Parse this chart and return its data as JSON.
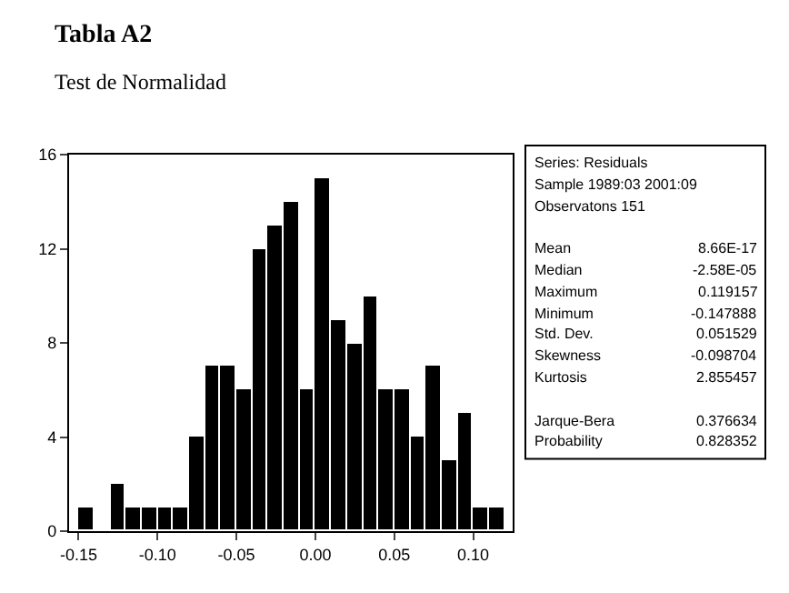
{
  "chart_data": {
    "type": "histogram",
    "title": "Tabla A2",
    "subtitle": "Test de Normalidad",
    "bins": [
      -0.15,
      -0.14,
      -0.13,
      -0.12,
      -0.11,
      -0.1,
      -0.09,
      -0.08,
      -0.07,
      -0.06,
      -0.05,
      -0.04,
      -0.03,
      -0.02,
      -0.01,
      0.0,
      0.01,
      0.02,
      0.03,
      0.04,
      0.05,
      0.06,
      0.07,
      0.08,
      0.09,
      0.1,
      0.11,
      0.12
    ],
    "values": [
      1,
      0,
      2,
      1,
      1,
      1,
      1,
      4,
      7,
      7,
      6,
      12,
      13,
      14,
      6,
      15,
      9,
      8,
      10,
      6,
      6,
      4,
      7,
      3,
      5,
      1,
      1
    ],
    "color": "#000000",
    "xlim": [
      -0.156,
      0.125
    ],
    "xticks": [
      {
        "value": -0.15,
        "label": "-0.15"
      },
      {
        "value": -0.1,
        "label": "-0.10"
      },
      {
        "value": -0.05,
        "label": "-0.05"
      },
      {
        "value": 0,
        "label": "0.00"
      },
      {
        "value": 0.05,
        "label": "0.05"
      },
      {
        "value": 0.1,
        "label": "0.10"
      }
    ],
    "ylim": [
      0,
      16
    ],
    "yticks": [
      0,
      4,
      8,
      12,
      16
    ],
    "annotations": [
      "Series: Residuals\nSample 1989:03 2001:09\nObservatons 151",
      "Mean\t8.66E-17\nMedian\t-2.58E-05\nMaximum\t0.119157\nMinimum\t-0.147888\nStd. Dev.\t0.051529\nSkewness\t-0.098704\nKurtosis\t2.855457",
      "Jarque-Bera\t0.376634\nProbability\t0.828352"
    ]
  }
}
